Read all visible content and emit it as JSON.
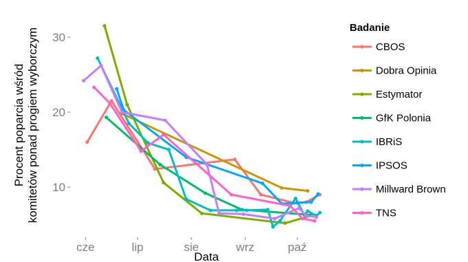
{
  "chart_data": {
    "type": "line",
    "title": "",
    "xlabel": "Data",
    "ylabel_line1": "Procent poparcia wśród",
    "ylabel_line2": "komitetów ponad progiem wyborczym",
    "x_ticks": [
      "cze",
      "lip",
      "sie",
      "wrz",
      "paź"
    ],
    "x_tick_positions": [
      0,
      30,
      61,
      92,
      122
    ],
    "xlim": [
      -8,
      145
    ],
    "y_ticks": [
      10,
      20,
      30
    ],
    "ylim": [
      3.5,
      33.3
    ],
    "grid": false,
    "legend_title": "Badanie",
    "legend_position": "right",
    "series": [
      {
        "name": "CBOS",
        "color": "#F8766D",
        "points": [
          [
            1,
            16
          ],
          [
            15,
            21.5
          ],
          [
            33,
            15
          ],
          [
            40,
            12.4
          ],
          [
            86,
            13.7
          ],
          [
            101,
            9
          ],
          [
            120,
            7.9
          ],
          [
            127,
            8
          ],
          [
            135,
            9
          ]
        ]
      },
      {
        "name": "Dobra Opinia",
        "color": "#CD9600",
        "points": [
          [
            21,
            19.8
          ],
          [
            113,
            9.9
          ],
          [
            128,
            9.5
          ]
        ]
      },
      {
        "name": "Estymator",
        "color": "#7CAE00",
        "points": [
          [
            11,
            31.5
          ],
          [
            24,
            21
          ],
          [
            45,
            10.6
          ],
          [
            67,
            6.5
          ],
          [
            115,
            5.2
          ],
          [
            130,
            6.2
          ]
        ]
      },
      {
        "name": "GfK Polonia",
        "color": "#00BE67",
        "points": [
          [
            12,
            19.3
          ],
          [
            43,
            13
          ],
          [
            69,
            9.2
          ],
          [
            90,
            7
          ],
          [
            130,
            6.3
          ]
        ]
      },
      {
        "name": "IBRiS",
        "color": "#00BFC4",
        "points": [
          [
            7,
            27.2
          ],
          [
            25,
            18.5
          ],
          [
            36,
            15.9
          ],
          [
            48,
            15
          ],
          [
            58,
            8.4
          ],
          [
            72,
            6.9
          ],
          [
            87,
            6.9
          ],
          [
            93,
            6.9
          ],
          [
            105,
            7
          ],
          [
            108,
            4.7
          ],
          [
            112,
            5.5
          ],
          [
            121,
            8.5
          ],
          [
            126,
            6.3
          ],
          [
            128,
            6.8
          ],
          [
            133,
            6.2
          ],
          [
            135,
            6.6
          ]
        ]
      },
      {
        "name": "IPSOS",
        "color": "#00A9FF",
        "points": [
          [
            18,
            23.1
          ],
          [
            22,
            20.3
          ],
          [
            58,
            14
          ],
          [
            102,
            10.5
          ],
          [
            113,
            7.8
          ],
          [
            122,
            7.9
          ],
          [
            130,
            8
          ],
          [
            134,
            9.1
          ]
        ]
      },
      {
        "name": "Millward Brown",
        "color": "#C77CFF",
        "points": [
          [
            -1,
            24.2
          ],
          [
            9,
            26.2
          ],
          [
            21,
            20
          ],
          [
            46,
            18.9
          ],
          [
            70,
            13
          ],
          [
            77,
            6.5
          ],
          [
            91,
            6.4
          ],
          [
            109,
            5.8
          ],
          [
            123,
            7.2
          ],
          [
            127,
            6.2
          ],
          [
            133,
            6
          ]
        ]
      },
      {
        "name": "TNS",
        "color": "#FF61CC",
        "points": [
          [
            5,
            23.3
          ],
          [
            14,
            21.2
          ],
          [
            32,
            14.8
          ],
          [
            45,
            17
          ],
          [
            84,
            9
          ],
          [
            118,
            7.5
          ],
          [
            125,
            5.8
          ],
          [
            132,
            5.5
          ]
        ]
      }
    ]
  }
}
